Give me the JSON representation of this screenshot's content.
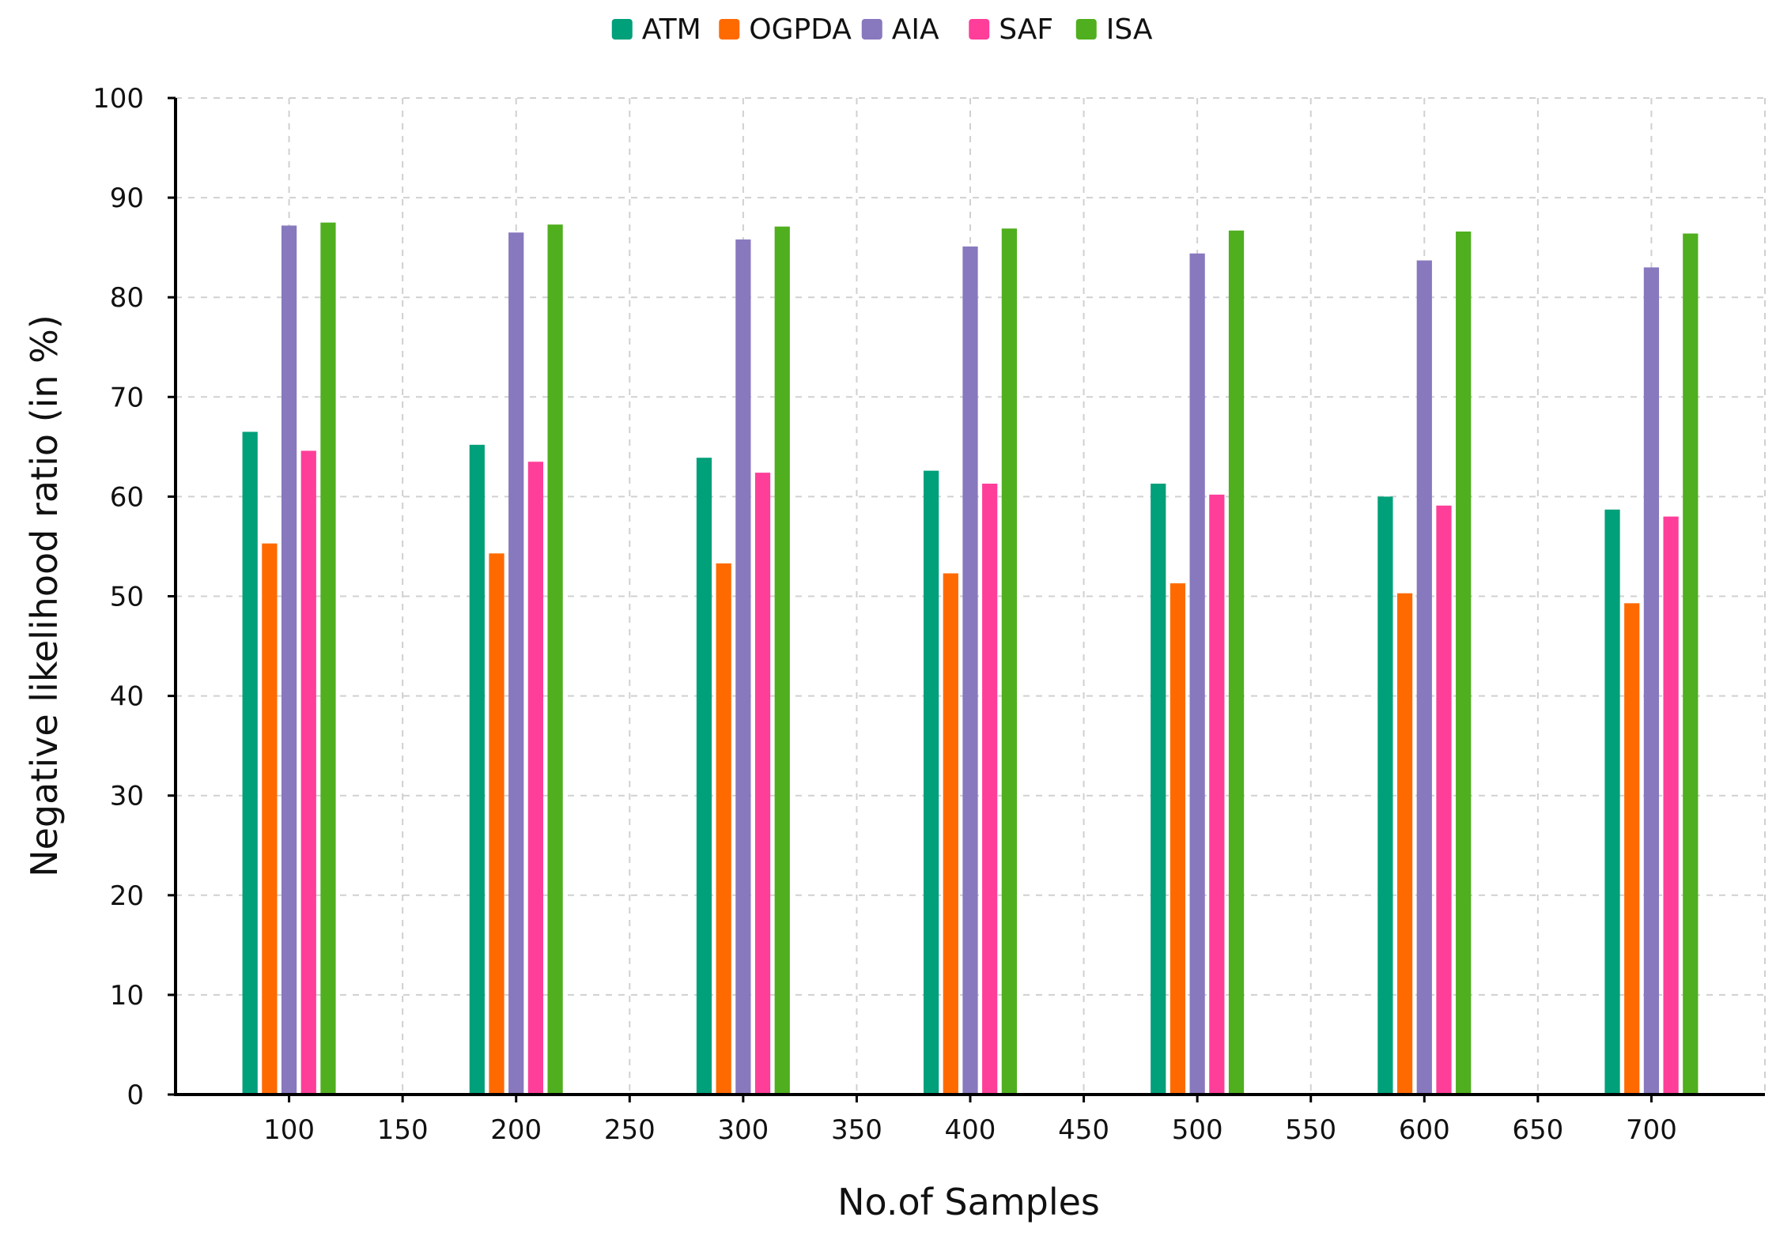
{
  "chart_data": {
    "type": "bar",
    "title": "",
    "xlabel": "No.of Samples",
    "ylabel": "Negative likelihood ratio (in %)",
    "ylim": [
      0,
      100
    ],
    "y_ticks": [
      0,
      10,
      20,
      30,
      40,
      50,
      60,
      70,
      80,
      90,
      100
    ],
    "xlim": [
      50,
      750
    ],
    "x_ticks": [
      100,
      150,
      200,
      250,
      300,
      350,
      400,
      450,
      500,
      550,
      600,
      650,
      700
    ],
    "categories": [
      "100",
      "200",
      "300",
      "400",
      "500",
      "600",
      "700"
    ],
    "x": [
      100,
      200,
      300,
      400,
      500,
      600,
      700
    ],
    "grid": "dashed, both axes",
    "legend_position": "top-center",
    "series": [
      {
        "name": "ATM",
        "color": "#00A07A",
        "values": [
          66.5,
          65.2,
          63.9,
          62.6,
          61.3,
          60.0,
          58.7
        ]
      },
      {
        "name": "OGPDA",
        "color": "#FF6A00",
        "values": [
          55.3,
          54.3,
          53.3,
          52.3,
          51.3,
          50.3,
          49.3
        ]
      },
      {
        "name": "AIA",
        "color": "#8878BE",
        "values": [
          87.2,
          86.5,
          85.8,
          85.1,
          84.4,
          83.7,
          83.0
        ]
      },
      {
        "name": "SAF",
        "color": "#FF3E9A",
        "values": [
          64.6,
          63.5,
          62.4,
          61.3,
          60.2,
          59.1,
          58.0
        ]
      },
      {
        "name": "ISA",
        "color": "#4FAF1E",
        "values": [
          87.5,
          87.3,
          87.1,
          86.9,
          86.7,
          86.6,
          86.4
        ]
      }
    ]
  }
}
